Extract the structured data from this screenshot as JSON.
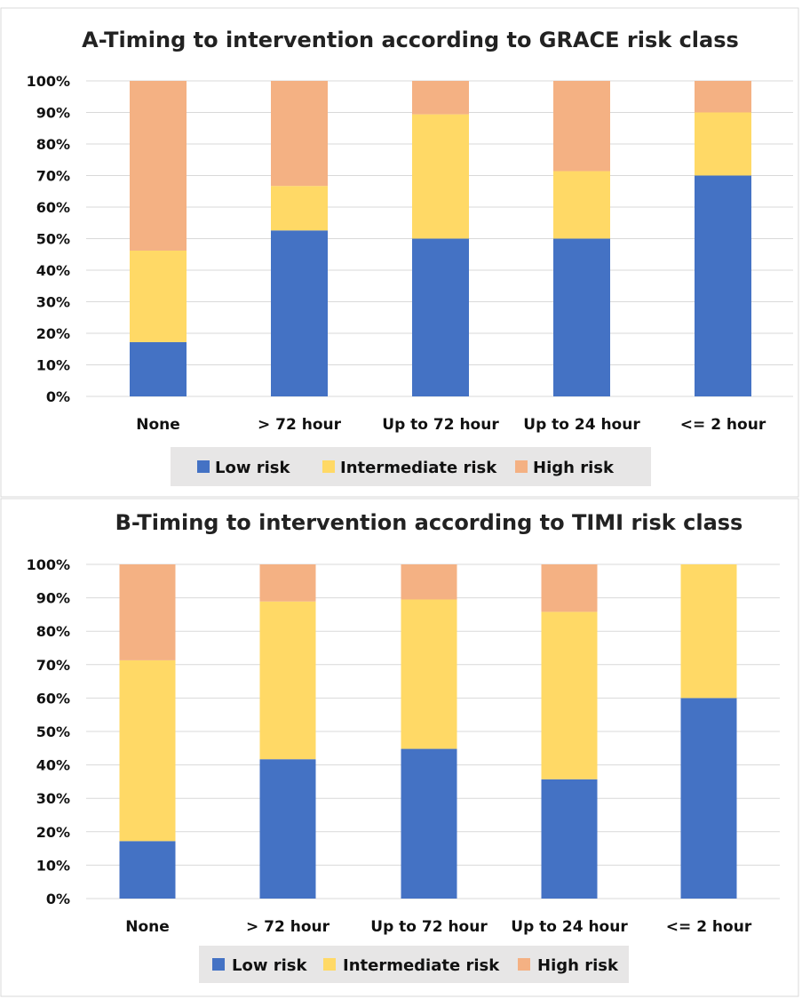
{
  "chart_data": [
    {
      "type": "bar",
      "stacked": true,
      "title": "A-Timing to intervention according to GRACE risk class",
      "categories": [
        "None",
        "> 72 hour",
        "Up to 72 hour",
        "Up to 24 hour",
        "<= 2 hour"
      ],
      "series": [
        {
          "name": "Low risk",
          "color": "#4472c4",
          "values": [
            17.2,
            52.6,
            50.0,
            50.0,
            70.0
          ]
        },
        {
          "name": "Intermediate risk",
          "color": "#ffd966",
          "values": [
            29.0,
            14.1,
            39.4,
            21.4,
            20.0
          ]
        },
        {
          "name": "High risk",
          "color": "#f4b183",
          "values": [
            53.8,
            33.3,
            10.6,
            28.6,
            10.0
          ]
        }
      ],
      "ylim": [
        0,
        100
      ],
      "yticks": [
        "0%",
        "10%",
        "20%",
        "30%",
        "40%",
        "50%",
        "60%",
        "70%",
        "80%",
        "90%",
        "100%"
      ],
      "grid": true,
      "legend_position": "bottom",
      "xlabel": "",
      "ylabel": ""
    },
    {
      "type": "bar",
      "stacked": true,
      "title": "B-Timing to intervention according to TIMI risk class",
      "categories": [
        "None",
        "> 72 hour",
        "Up to 72 hour",
        "Up to 24 hour",
        "<= 2 hour"
      ],
      "series": [
        {
          "name": "Low risk",
          "color": "#4472c4",
          "values": [
            17.2,
            41.7,
            44.8,
            35.7,
            60.0
          ]
        },
        {
          "name": "Intermediate risk",
          "color": "#ffd966",
          "values": [
            54.1,
            47.2,
            44.7,
            50.1,
            40.0
          ]
        },
        {
          "name": "High risk",
          "color": "#f4b183",
          "values": [
            28.7,
            11.1,
            10.5,
            14.2,
            0.0
          ]
        }
      ],
      "ylim": [
        0,
        100
      ],
      "yticks": [
        "0%",
        "10%",
        "20%",
        "30%",
        "40%",
        "50%",
        "60%",
        "70%",
        "80%",
        "90%",
        "100%"
      ],
      "grid": true,
      "legend_position": "bottom",
      "xlabel": "",
      "ylabel": ""
    }
  ]
}
